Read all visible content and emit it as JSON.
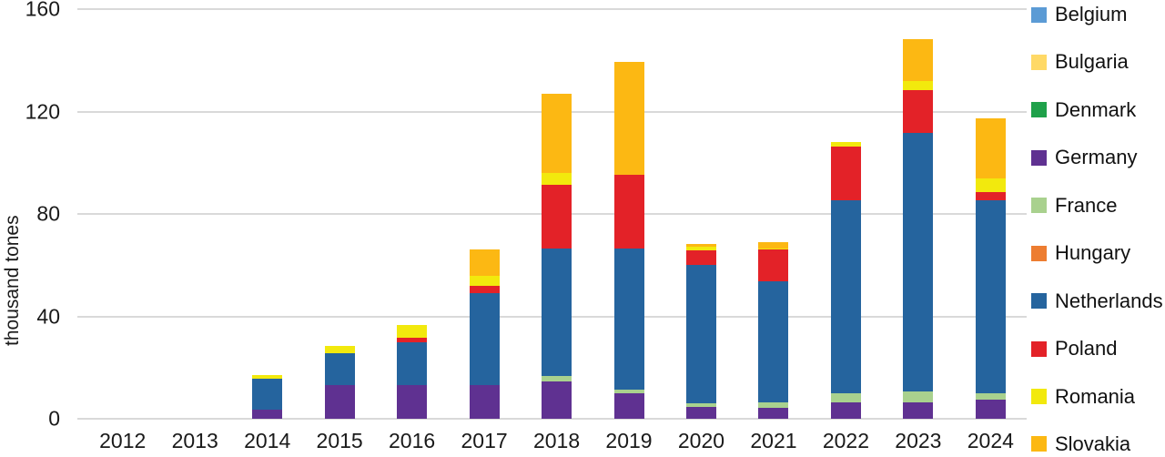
{
  "chart_data": {
    "type": "bar",
    "stacked": true,
    "title": "",
    "xlabel": "",
    "ylabel": "thousand tones",
    "ylim": [
      0,
      160
    ],
    "yticks": [
      0,
      40,
      80,
      120,
      160
    ],
    "grid": "horizontal",
    "grid_color": "#d9d9d9",
    "legend_position": "right",
    "categories": [
      "2012",
      "2013",
      "2014",
      "2015",
      "2016",
      "2017",
      "2018",
      "2019",
      "2020",
      "2021",
      "2022",
      "2023",
      "2024"
    ],
    "series": [
      {
        "name": "Belgium",
        "color": "#5B9BD5",
        "values": [
          0,
          0,
          0,
          0,
          0,
          0,
          0,
          0,
          0,
          0,
          0,
          0,
          0
        ]
      },
      {
        "name": "Bulgaria",
        "color": "#FFD966",
        "values": [
          0,
          0,
          0,
          0,
          0,
          0,
          0,
          0,
          0,
          0,
          0,
          0,
          0
        ]
      },
      {
        "name": "Denmark",
        "color": "#1FA14A",
        "values": [
          0,
          0,
          0,
          0,
          0,
          0,
          0,
          0,
          0,
          0,
          0,
          0,
          0
        ]
      },
      {
        "name": "Germany",
        "color": "#5F3191",
        "values": [
          0,
          0,
          3.5,
          13,
          13,
          13,
          14.5,
          10,
          4.7,
          4.4,
          6.3,
          6.3,
          7.5
        ]
      },
      {
        "name": "France",
        "color": "#A9D18E",
        "values": [
          0,
          0,
          0,
          0,
          0,
          0,
          2.3,
          1.4,
          1.5,
          2.1,
          3.8,
          4.4,
          2.4
        ]
      },
      {
        "name": "Hungary",
        "color": "#ED7D31",
        "values": [
          0,
          0,
          0,
          0,
          0,
          0,
          0,
          0,
          0,
          0,
          0,
          0,
          0
        ]
      },
      {
        "name": "Netherlands",
        "color": "#25649E",
        "values": [
          0,
          0,
          12,
          12.5,
          17,
          36,
          49.7,
          55.2,
          54,
          47.2,
          75.1,
          101,
          75.4
        ]
      },
      {
        "name": "Poland",
        "color": "#E32228",
        "values": [
          0,
          0,
          0,
          0,
          1.5,
          3,
          24.8,
          28.6,
          5.7,
          12.4,
          21.1,
          16.6,
          3.1
        ]
      },
      {
        "name": "Romania",
        "color": "#F2E90D",
        "values": [
          0,
          0,
          1.5,
          3,
          5,
          4,
          4.7,
          0,
          1.2,
          0.5,
          1.7,
          3.5,
          5.6
        ]
      },
      {
        "name": "Slovakia",
        "color": "#FCB813",
        "values": [
          0,
          0,
          0,
          0,
          0,
          10,
          30.8,
          44.1,
          1.3,
          2.4,
          0,
          16.6,
          23.3
        ]
      }
    ]
  }
}
